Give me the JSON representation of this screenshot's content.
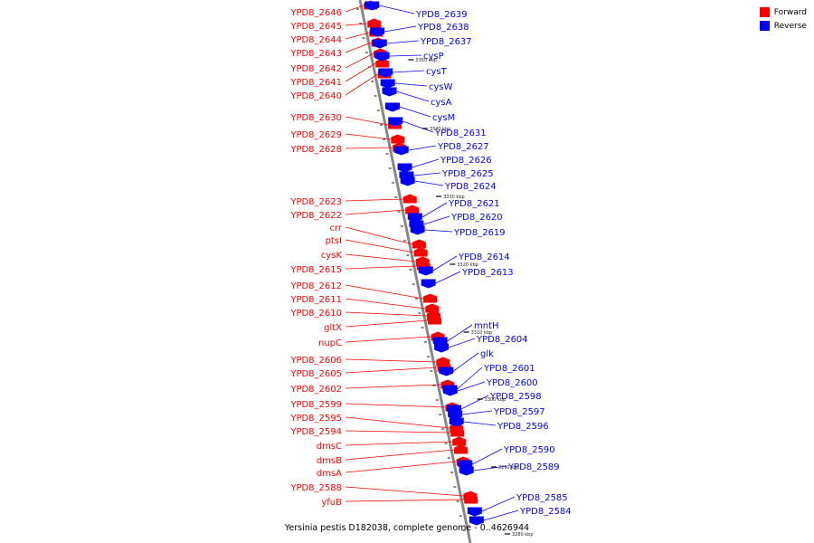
{
  "legend": [
    {
      "label": "Forward",
      "color": "#ff0000"
    },
    {
      "label": "Reverse",
      "color": "#0000ff"
    }
  ],
  "caption": "Yersinia pestis D182038, complete genome - 0..4626944",
  "colors": {
    "forward": "#ff0000",
    "reverse": "#0000ff",
    "axis": "#888888"
  },
  "ticks": [
    {
      "label": "3350 kbp",
      "side": "right"
    },
    {
      "label": "3340 kbp",
      "side": "right"
    },
    {
      "label": "3330 kbp",
      "side": "right"
    },
    {
      "label": "3320 kbp",
      "side": "right"
    },
    {
      "label": "3310 kbp",
      "side": "right"
    },
    {
      "label": "3300 kbp",
      "side": "right"
    },
    {
      "label": "3290 kbp",
      "side": "right"
    },
    {
      "label": "3280 kbp",
      "side": "right"
    }
  ],
  "forward_genes": [
    "YPD8_2646",
    "YPD8_2645",
    "YPD8_2644",
    "YPD8_2643",
    "YPD8_2642",
    "YPD8_2641",
    "YPD8_2640",
    "YPD8_2630",
    "YPD8_2629",
    "YPD8_2628",
    "YPD8_2623",
    "YPD8_2622",
    "crr",
    "ptsI",
    "cysK",
    "YPD8_2615",
    "YPD8_2612",
    "YPD8_2611",
    "YPD8_2610",
    "gltX",
    "nupC",
    "YPD8_2606",
    "YPD8_2605",
    "YPD8_2602",
    "YPD8_2599",
    "YPD8_2595",
    "YPD8_2594",
    "dmsC",
    "dmsB",
    "dmsA",
    "YPD8_2588",
    "yfuB"
  ],
  "reverse_genes": [
    "YPD8_2639",
    "YPD8_2638",
    "YPD8_2637",
    "cysP",
    "cysT",
    "cysW",
    "cysA",
    "cysM",
    "YPD8_2631",
    "YPD8_2627",
    "YPD8_2626",
    "YPD8_2625",
    "YPD8_2624",
    "YPD8_2621",
    "YPD8_2620",
    "YPD8_2619",
    "YPD8_2614",
    "YPD8_2613",
    "mntH",
    "YPD8_2604",
    "glk",
    "YPD8_2601",
    "YPD8_2600",
    "YPD8_2598",
    "YPD8_2597",
    "YPD8_2596",
    "YPD8_2590",
    "YPD8_2589",
    "YPD8_2585",
    "YPD8_2584"
  ]
}
